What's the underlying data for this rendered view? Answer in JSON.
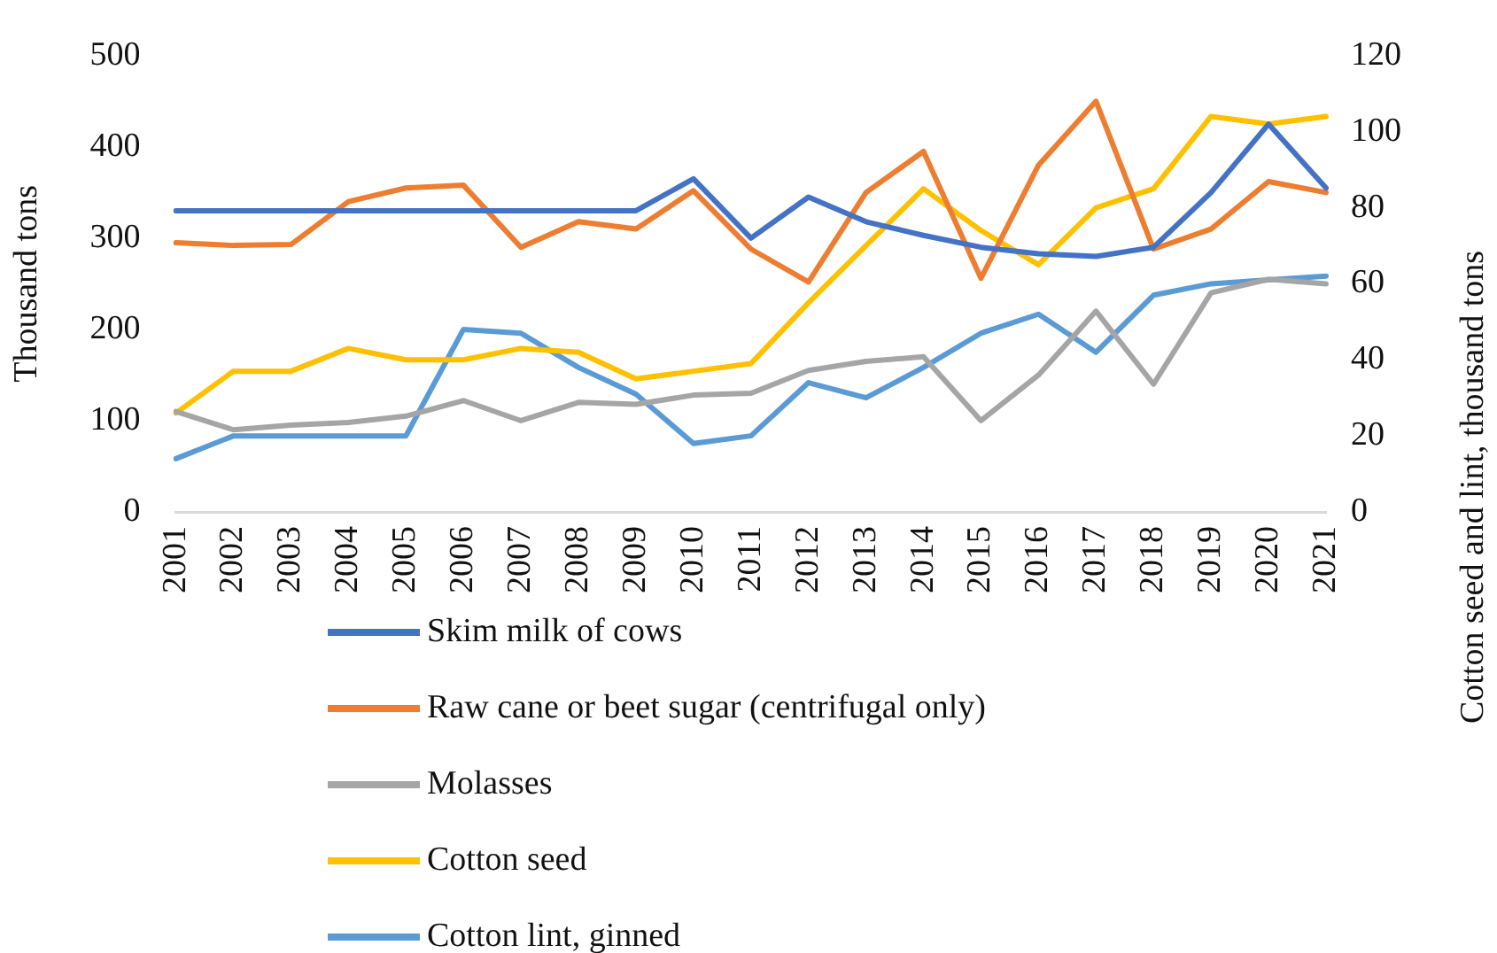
{
  "chart_data": {
    "type": "line",
    "ylabel": "Thousand tons",
    "y2label": "Cotton seed and lint, thousand tons",
    "categories": [
      "2001",
      "2002",
      "2003",
      "2004",
      "2005",
      "2006",
      "2007",
      "2008",
      "2009",
      "2010",
      "2011",
      "2012",
      "2013",
      "2014",
      "2015",
      "2016",
      "2017",
      "2018",
      "2019",
      "2020",
      "2021"
    ],
    "series": [
      {
        "name": "Skim milk of cows",
        "color": "#4472c4",
        "values": [
          330,
          330,
          330,
          330,
          330,
          330,
          330,
          330,
          330,
          365,
          300,
          345,
          318,
          303,
          290,
          283,
          280,
          290,
          350,
          425,
          355
        ]
      },
      {
        "name": "Raw cane or beet sugar (centrifugal only)",
        "color": "#ed7d31",
        "values": [
          295,
          292,
          293,
          340,
          355,
          358,
          290,
          318,
          310,
          352,
          288,
          252,
          350,
          395,
          256,
          380,
          450,
          288,
          310,
          362,
          350
        ]
      },
      {
        "name": "Molasses",
        "color": "#a5a5a5",
        "values": [
          110,
          90,
          95,
          98,
          105,
          122,
          100,
          120,
          118,
          128,
          130,
          155,
          165,
          170,
          100,
          150,
          220,
          140,
          240,
          255,
          250
        ]
      },
      {
        "name": "Cotton seed",
        "color": "#ffc000",
        "axis": "y2",
        "values": [
          26,
          37,
          37,
          43,
          40,
          40,
          43,
          42,
          35,
          37,
          39,
          55,
          70,
          85,
          74,
          65,
          80,
          85,
          104,
          102,
          104
        ]
      },
      {
        "name": "Cotton lint, ginned",
        "color": "#5b9bd5",
        "axis": "y2",
        "values": [
          14,
          20,
          20,
          20,
          20,
          48,
          47,
          38,
          31,
          18,
          20,
          34,
          30,
          38,
          47,
          52,
          42,
          57,
          60,
          61,
          62
        ]
      }
    ],
    "ylim": [
      0,
      500
    ],
    "yticks": [
      0,
      100,
      200,
      300,
      400,
      500
    ],
    "y2lim": [
      0,
      120
    ],
    "y2ticks": [
      0,
      20,
      40,
      60,
      80,
      100,
      120
    ],
    "grid": false,
    "legend": "bottom",
    "marker": "none",
    "line_style": "solid"
  }
}
